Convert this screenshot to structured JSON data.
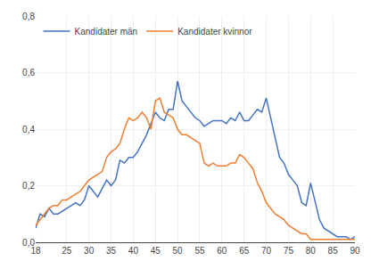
{
  "chart_data": {
    "type": "line",
    "x": [
      18,
      19,
      20,
      21,
      22,
      23,
      24,
      25,
      26,
      27,
      28,
      29,
      30,
      31,
      32,
      33,
      34,
      35,
      36,
      37,
      38,
      39,
      40,
      41,
      42,
      43,
      44,
      45,
      46,
      47,
      48,
      49,
      50,
      51,
      52,
      53,
      54,
      55,
      56,
      57,
      58,
      59,
      60,
      61,
      62,
      63,
      64,
      65,
      66,
      67,
      68,
      69,
      70,
      71,
      72,
      73,
      74,
      75,
      76,
      77,
      78,
      79,
      80,
      81,
      82,
      83,
      84,
      85,
      86,
      87,
      88,
      89,
      90
    ],
    "series": [
      {
        "name": "Kandidater män",
        "color": "#4472C4",
        "values": [
          0.05,
          0.1,
          0.09,
          0.12,
          0.1,
          0.1,
          0.11,
          0.12,
          0.13,
          0.14,
          0.13,
          0.15,
          0.2,
          0.18,
          0.16,
          0.19,
          0.22,
          0.2,
          0.22,
          0.29,
          0.28,
          0.3,
          0.3,
          0.32,
          0.35,
          0.38,
          0.42,
          0.46,
          0.44,
          0.43,
          0.47,
          0.47,
          0.57,
          0.5,
          0.48,
          0.46,
          0.44,
          0.43,
          0.41,
          0.42,
          0.43,
          0.43,
          0.43,
          0.42,
          0.44,
          0.43,
          0.46,
          0.43,
          0.43,
          0.45,
          0.47,
          0.46,
          0.51,
          0.44,
          0.37,
          0.3,
          0.28,
          0.24,
          0.22,
          0.2,
          0.14,
          0.13,
          0.21,
          0.14,
          0.08,
          0.05,
          0.04,
          0.03,
          0.02,
          0.02,
          0.02,
          0.01,
          0.02
        ]
      },
      {
        "name": "Kandidater kvinnor",
        "color": "#ED7D31",
        "values": [
          0.06,
          0.08,
          0.1,
          0.12,
          0.13,
          0.13,
          0.15,
          0.15,
          0.16,
          0.17,
          0.18,
          0.2,
          0.22,
          0.23,
          0.24,
          0.25,
          0.3,
          0.32,
          0.33,
          0.35,
          0.4,
          0.44,
          0.43,
          0.44,
          0.46,
          0.44,
          0.4,
          0.5,
          0.51,
          0.46,
          0.45,
          0.44,
          0.4,
          0.38,
          0.38,
          0.37,
          0.36,
          0.35,
          0.28,
          0.27,
          0.28,
          0.27,
          0.27,
          0.27,
          0.28,
          0.28,
          0.31,
          0.3,
          0.28,
          0.26,
          0.21,
          0.18,
          0.14,
          0.12,
          0.1,
          0.09,
          0.08,
          0.06,
          0.05,
          0.04,
          0.03,
          0.03,
          0.01,
          0.01,
          0.01,
          0.01,
          0.01,
          0.01,
          0.01,
          0.01,
          0.01,
          0.01,
          0.01
        ]
      }
    ],
    "xlim": [
      18,
      90
    ],
    "xticks": [
      18,
      25,
      30,
      35,
      40,
      45,
      50,
      55,
      60,
      65,
      70,
      75,
      80,
      85,
      90
    ],
    "ylim": [
      0.0,
      0.8
    ],
    "yticks": [
      {
        "value": 0.0,
        "label": "0,0"
      },
      {
        "value": 0.2,
        "label": "0,2"
      },
      {
        "value": 0.4,
        "label": "0,4"
      },
      {
        "value": 0.6,
        "label": "0,6"
      },
      {
        "value": 0.8,
        "label": "0,8"
      }
    ],
    "grid": true,
    "legend": "upper left"
  }
}
